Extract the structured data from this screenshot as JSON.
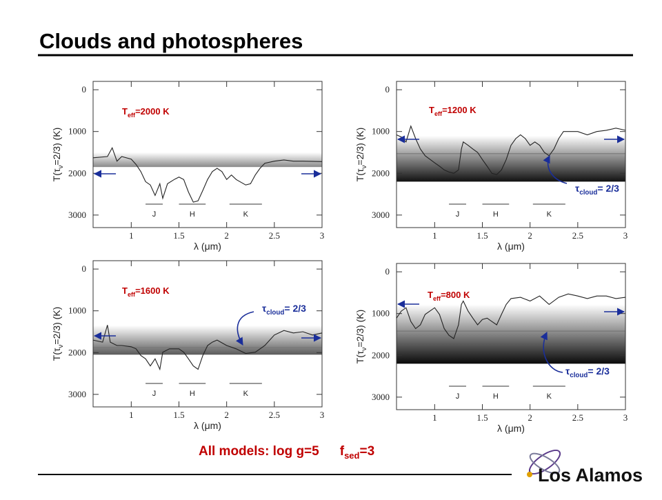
{
  "slide_title": "Clouds and photospheres",
  "footer": {
    "main": "All models: log g=5",
    "f": "f",
    "f_sub": "sed",
    "f_rest": "=3"
  },
  "logo": "Los Alamos",
  "chart_data": [
    {
      "type": "line",
      "label": {
        "main": "T",
        "sub": "eff",
        "rest": "=2000 K"
      },
      "y_label": {
        "pre": "T(τ",
        "sub": "ν",
        "post": "=2/3) (K)"
      },
      "x_label": "λ (μm)",
      "xlim": [
        0.6,
        3.0
      ],
      "xticks": [
        1,
        1.5,
        2,
        2.5,
        3
      ],
      "ylim": [
        -200,
        3300
      ],
      "yticks": [
        0,
        1000,
        2000,
        3000
      ],
      "y_inverted": true,
      "bands": [
        {
          "name": "J",
          "range": [
            1.15,
            1.33
          ]
        },
        {
          "name": "H",
          "range": [
            1.5,
            1.78
          ]
        },
        {
          "name": "K",
          "range": [
            2.03,
            2.37
          ]
        }
      ],
      "cloud_deck": [
        1500,
        1850
      ],
      "cloud_color": "#8a8a8a",
      "color": "#222222",
      "x": [
        0.6,
        0.75,
        0.8,
        0.85,
        0.9,
        1.0,
        1.05,
        1.1,
        1.15,
        1.2,
        1.25,
        1.3,
        1.33,
        1.38,
        1.45,
        1.5,
        1.55,
        1.6,
        1.65,
        1.7,
        1.75,
        1.8,
        1.85,
        1.9,
        1.95,
        2.0,
        2.05,
        2.1,
        2.2,
        2.25,
        2.3,
        2.35,
        2.4,
        2.5,
        2.6,
        2.7,
        2.8,
        3.0
      ],
      "values": [
        1630,
        1600,
        1390,
        1710,
        1600,
        1660,
        1790,
        1960,
        2200,
        2280,
        2530,
        2250,
        2600,
        2250,
        2150,
        2090,
        2150,
        2450,
        2690,
        2660,
        2410,
        2150,
        1960,
        1880,
        1960,
        2150,
        2040,
        2150,
        2280,
        2250,
        2040,
        1880,
        1760,
        1710,
        1680,
        1710,
        1710,
        1720
      ]
    },
    {
      "type": "line",
      "label": {
        "main": "T",
        "sub": "eff",
        "rest": "=1200 K"
      },
      "cloud_label": {
        "main": "τ",
        "sub": "cloud",
        "rest": "= 2/3"
      },
      "y_label": {
        "pre": "T(τ",
        "sub": "ν",
        "post": "=2/3) (K)"
      },
      "x_label": "λ (μm)",
      "xlim": [
        0.6,
        3.0
      ],
      "xticks": [
        1,
        1.5,
        2,
        2.5,
        3
      ],
      "ylim": [
        -200,
        3300
      ],
      "yticks": [
        0,
        1000,
        2000,
        3000
      ],
      "y_inverted": true,
      "bands": [
        {
          "name": "J",
          "range": [
            1.15,
            1.33
          ]
        },
        {
          "name": "H",
          "range": [
            1.5,
            1.78
          ]
        },
        {
          "name": "K",
          "range": [
            2.03,
            2.37
          ]
        }
      ],
      "cloud_deck": [
        1100,
        2200
      ],
      "cloud_line": 1530,
      "cloud_color": "#111111",
      "color": "#222222",
      "x": [
        0.6,
        0.65,
        0.7,
        0.75,
        0.8,
        0.85,
        0.9,
        1.0,
        1.05,
        1.1,
        1.15,
        1.2,
        1.25,
        1.28,
        1.3,
        1.35,
        1.4,
        1.45,
        1.5,
        1.55,
        1.6,
        1.65,
        1.7,
        1.75,
        1.8,
        1.85,
        1.9,
        1.95,
        2.0,
        2.05,
        2.1,
        2.15,
        2.2,
        2.25,
        2.3,
        2.35,
        2.5,
        2.6,
        2.7,
        2.8,
        2.9,
        3.0
      ],
      "values": [
        1080,
        1130,
        1250,
        870,
        1170,
        1420,
        1580,
        1750,
        1830,
        1920,
        1970,
        2000,
        1920,
        1420,
        1250,
        1330,
        1420,
        1500,
        1670,
        1830,
        2000,
        2030,
        1920,
        1670,
        1330,
        1170,
        1080,
        1170,
        1330,
        1250,
        1330,
        1500,
        1580,
        1420,
        1170,
        1000,
        1000,
        1080,
        1000,
        970,
        920,
        970
      ]
    },
    {
      "type": "line",
      "label": {
        "main": "T",
        "sub": "eff",
        "rest": "=1600 K"
      },
      "cloud_label": {
        "main": "τ",
        "sub": "cloud",
        "rest": "= 2/3"
      },
      "y_label": {
        "pre": "T(τ",
        "sub": "ν",
        "post": "=2/3) (K)"
      },
      "x_label": "λ (μm)",
      "xlim": [
        0.6,
        3.0
      ],
      "xticks": [
        1,
        1.5,
        2,
        2.5,
        3
      ],
      "ylim": [
        -200,
        3300
      ],
      "yticks": [
        0,
        1000,
        2000,
        3000
      ],
      "y_inverted": true,
      "bands": [
        {
          "name": "J",
          "range": [
            1.15,
            1.33
          ]
        },
        {
          "name": "H",
          "range": [
            1.5,
            1.78
          ]
        },
        {
          "name": "K",
          "range": [
            2.03,
            2.37
          ]
        }
      ],
      "cloud_deck": [
        1350,
        2050
      ],
      "cloud_line": 1880,
      "cloud_color": "#5a5a5a",
      "color": "#222222",
      "x": [
        0.6,
        0.7,
        0.75,
        0.78,
        0.85,
        0.9,
        1.0,
        1.05,
        1.1,
        1.15,
        1.2,
        1.25,
        1.3,
        1.33,
        1.4,
        1.5,
        1.55,
        1.6,
        1.65,
        1.7,
        1.75,
        1.8,
        1.85,
        1.9,
        2.0,
        2.1,
        2.2,
        2.3,
        2.4,
        2.5,
        2.6,
        2.7,
        2.8,
        2.9,
        3.0
      ],
      "values": [
        1700,
        1750,
        1340,
        1750,
        1830,
        1830,
        1860,
        1910,
        2070,
        2150,
        2320,
        2150,
        2400,
        1990,
        1910,
        1910,
        1990,
        2150,
        2320,
        2400,
        2070,
        1830,
        1750,
        1700,
        1830,
        1910,
        2020,
        1990,
        1830,
        1580,
        1470,
        1530,
        1500,
        1580,
        1530
      ]
    },
    {
      "type": "line",
      "label": {
        "main": "T",
        "sub": "eff",
        "rest": "=800 K"
      },
      "cloud_label": {
        "main": "τ",
        "sub": "cloud",
        "rest": "= 2/3"
      },
      "y_label": {
        "pre": "T(τ",
        "sub": "ν",
        "post": "=2/3) (K)"
      },
      "x_label": "λ (μm)",
      "xlim": [
        0.6,
        3.0
      ],
      "xticks": [
        1,
        1.5,
        2,
        2.5,
        3
      ],
      "ylim": [
        -200,
        3300
      ],
      "yticks": [
        0,
        1000,
        2000,
        3000
      ],
      "y_inverted": true,
      "bands": [
        {
          "name": "J",
          "range": [
            1.15,
            1.33
          ]
        },
        {
          "name": "H",
          "range": [
            1.5,
            1.78
          ]
        },
        {
          "name": "K",
          "range": [
            2.03,
            2.37
          ]
        }
      ],
      "cloud_deck": [
        780,
        2200
      ],
      "cloud_line": 1420,
      "cloud_color": "#0a0a0a",
      "color": "#222222",
      "x": [
        0.6,
        0.65,
        0.7,
        0.75,
        0.8,
        0.85,
        0.9,
        1.0,
        1.05,
        1.1,
        1.15,
        1.2,
        1.25,
        1.28,
        1.3,
        1.35,
        1.4,
        1.45,
        1.5,
        1.55,
        1.6,
        1.65,
        1.7,
        1.75,
        1.8,
        1.9,
        2.0,
        2.1,
        2.2,
        2.3,
        2.4,
        2.5,
        2.6,
        2.7,
        2.8,
        2.9,
        3.0
      ],
      "values": [
        1110,
        940,
        860,
        1190,
        1360,
        1270,
        1020,
        860,
        1020,
        1360,
        1520,
        1600,
        1270,
        780,
        700,
        940,
        1110,
        1270,
        1140,
        1110,
        1190,
        1270,
        1020,
        780,
        640,
        610,
        700,
        580,
        780,
        610,
        530,
        580,
        640,
        580,
        580,
        640,
        610
      ]
    }
  ]
}
